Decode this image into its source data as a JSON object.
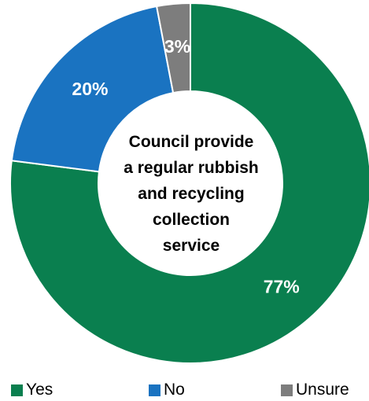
{
  "chart_data": {
    "type": "pie",
    "style": "donut",
    "title": "Council provide a regular rubbish and recycling collection service",
    "title_lines": [
      "Council provide",
      "a regular rubbish",
      "and recycling",
      "collection",
      "service"
    ],
    "series": [
      {
        "name": "Yes",
        "value": 77,
        "label": "77%",
        "color": "#0a7f4f"
      },
      {
        "name": "No",
        "value": 20,
        "label": "20%",
        "color": "#1a73c1"
      },
      {
        "name": "Unsure",
        "value": 3,
        "label": "3%",
        "color": "#7d7d7d"
      }
    ],
    "legend_position": "bottom"
  },
  "colors": {
    "slice_border": "#ffffff",
    "data_label_text": "#ffffff",
    "title_text": "#000000"
  }
}
